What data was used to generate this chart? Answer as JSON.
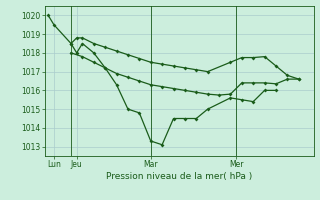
{
  "background_color": "#cceedd",
  "grid_color": "#aacccc",
  "line_color": "#1a5c1a",
  "title": "Pression niveau de la mer( hPa )",
  "ylim": [
    1012.5,
    1020.5
  ],
  "yticks": [
    1013,
    1014,
    1015,
    1016,
    1017,
    1018,
    1019,
    1020
  ],
  "xlim": [
    -0.3,
    23.3
  ],
  "vline_positions": [
    2.0,
    9.0,
    16.5
  ],
  "xtick_positions": [
    0.5,
    2.5,
    9.0,
    16.5
  ],
  "xtick_labels": [
    "Lun",
    "Jeu",
    "Mar",
    "Mer"
  ],
  "s1_x": [
    0,
    0.5,
    2,
    2.5,
    3,
    4,
    5,
    6,
    7,
    8,
    9,
    10,
    11,
    12,
    13,
    14,
    16,
    17,
    18,
    19,
    20,
    21,
    22
  ],
  "s1_y": [
    1020.0,
    1019.5,
    1018.5,
    1018.8,
    1018.8,
    1018.5,
    1018.3,
    1018.1,
    1017.9,
    1017.7,
    1017.5,
    1017.4,
    1017.3,
    1017.2,
    1017.1,
    1017.0,
    1017.5,
    1017.75,
    1017.75,
    1017.8,
    1017.3,
    1016.8,
    1016.6
  ],
  "s2_x": [
    2,
    2.5,
    3,
    4,
    5,
    6,
    7,
    8,
    9,
    10,
    11,
    12,
    13,
    14,
    16,
    17,
    18,
    19,
    20
  ],
  "s2_y": [
    1018.5,
    1018.0,
    1018.5,
    1018.0,
    1017.2,
    1016.3,
    1015.0,
    1014.8,
    1013.3,
    1013.1,
    1014.5,
    1014.5,
    1014.5,
    1015.0,
    1015.6,
    1015.5,
    1015.4,
    1016.0,
    1016.0
  ],
  "s3_x": [
    2,
    3,
    4,
    5,
    6,
    7,
    8,
    9,
    10,
    11,
    12,
    13,
    14,
    15,
    16,
    17,
    18,
    19,
    20,
    21,
    22
  ],
  "s3_y": [
    1018.0,
    1017.8,
    1017.5,
    1017.2,
    1016.9,
    1016.7,
    1016.5,
    1016.3,
    1016.2,
    1016.1,
    1016.0,
    1015.9,
    1015.8,
    1015.75,
    1015.8,
    1016.4,
    1016.4,
    1016.4,
    1016.35,
    1016.6,
    1016.6
  ]
}
